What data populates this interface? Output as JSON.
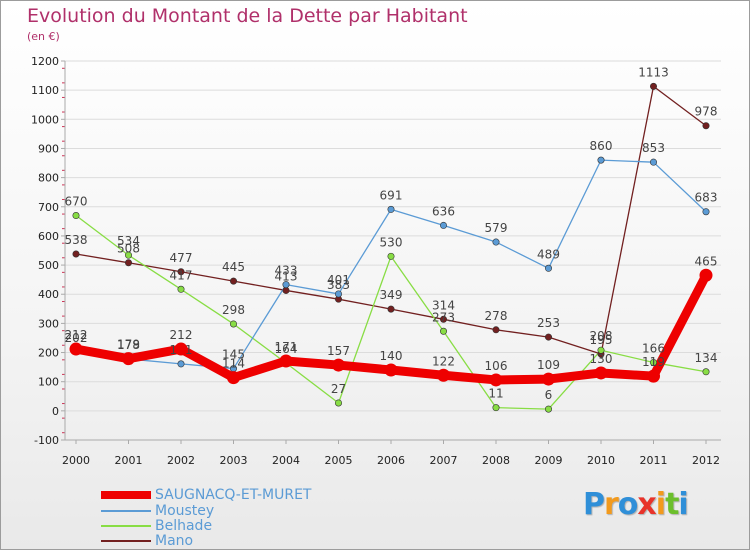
{
  "title": "Evolution du Montant de la Dette par Habitant",
  "unit": "(en €)",
  "legend": [
    {
      "label": "SAUGNACQ-ET-MURET",
      "color": "#ee0000"
    },
    {
      "label": "Moustey",
      "color": "#5b9bd5"
    },
    {
      "label": "Belhade",
      "color": "#88dd44"
    },
    {
      "label": "Mano",
      "color": "#722020"
    }
  ],
  "logo": {
    "letters": [
      "P",
      "r",
      "o",
      "x",
      "i",
      "t",
      "i"
    ],
    "colors": [
      "#2f8fd8",
      "#f29a1d",
      "#2f8fd8",
      "#e8332a",
      "#f29a1d",
      "#6cbf2c",
      "#2f8fd8"
    ]
  },
  "chart_data": {
    "type": "line",
    "x": [
      "2000",
      "2001",
      "2002",
      "2003",
      "2004",
      "2005",
      "2006",
      "2007",
      "2008",
      "2009",
      "2010",
      "2011",
      "2012"
    ],
    "ylim": [
      -100,
      1200
    ],
    "yticks": [
      "-100",
      "0",
      "100",
      "200",
      "300",
      "400",
      "500",
      "600",
      "700",
      "800",
      "900",
      "1000",
      "1100",
      "1200"
    ],
    "grid": "horizontal",
    "series": [
      {
        "name": "Mano",
        "color": "#722020",
        "values": [
          538,
          508,
          477,
          445,
          413,
          383,
          349,
          314,
          278,
          253,
          195,
          1113,
          978
        ],
        "labels": [
          "538",
          "508",
          "477",
          "445",
          "413",
          "383",
          "349",
          "314",
          "278",
          "253",
          "195",
          "1113",
          "978"
        ]
      },
      {
        "name": "Belhade",
        "color": "#88dd44",
        "values": [
          670,
          534,
          417,
          298,
          164,
          27,
          530,
          273,
          11,
          6,
          208,
          166,
          134
        ],
        "labels": [
          "670",
          "534",
          "417",
          "298",
          "164",
          "27",
          "530",
          "273",
          "11",
          "6",
          "208",
          "166",
          "134"
        ]
      },
      {
        "name": "Moustey",
        "color": "#5b9bd5",
        "values": [
          202,
          178,
          161,
          145,
          433,
          401,
          691,
          636,
          579,
          489,
          860,
          853,
          683
        ],
        "labels": [
          "202",
          "178",
          "161",
          "145",
          "433",
          "401",
          "691",
          "636",
          "579",
          "489",
          "860",
          "853",
          "683"
        ]
      },
      {
        "name": "SAUGNACQ-ET-MURET",
        "color": "#ee0000",
        "values": [
          212,
          179,
          212,
          114,
          171,
          157,
          140,
          122,
          106,
          109,
          130,
          119,
          465
        ],
        "labels": [
          "212",
          "179",
          "212",
          "114",
          "171",
          "157",
          "140",
          "122",
          "106",
          "109",
          "130",
          "119",
          "465"
        ]
      }
    ]
  }
}
